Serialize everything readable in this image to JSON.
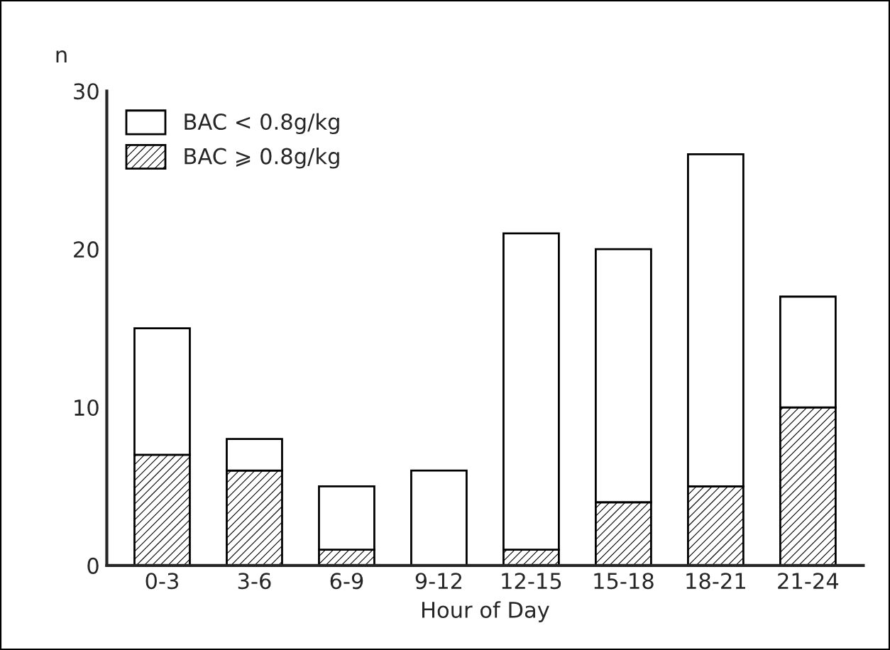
{
  "chart_data": {
    "type": "bar",
    "stacked": true,
    "xlabel": "Hour of Day",
    "ylabel": "n",
    "categories": [
      "0-3",
      "3-6",
      "6-9",
      "9-12",
      "12-15",
      "15-18",
      "18-21",
      "21-24"
    ],
    "series": [
      {
        "name": "BAC ⩾ 0.8g/kg",
        "color": "#000000",
        "values": [
          7,
          6,
          1,
          0,
          1,
          4,
          5,
          10
        ]
      },
      {
        "name": "BAC < 0.8g/kg",
        "color": "#ffffff",
        "values": [
          8,
          2,
          4,
          6,
          20,
          16,
          21,
          7
        ]
      }
    ],
    "ylim": [
      0,
      30
    ],
    "yticks": [
      0,
      10,
      20,
      30
    ],
    "legend": "top left",
    "grid": false
  }
}
